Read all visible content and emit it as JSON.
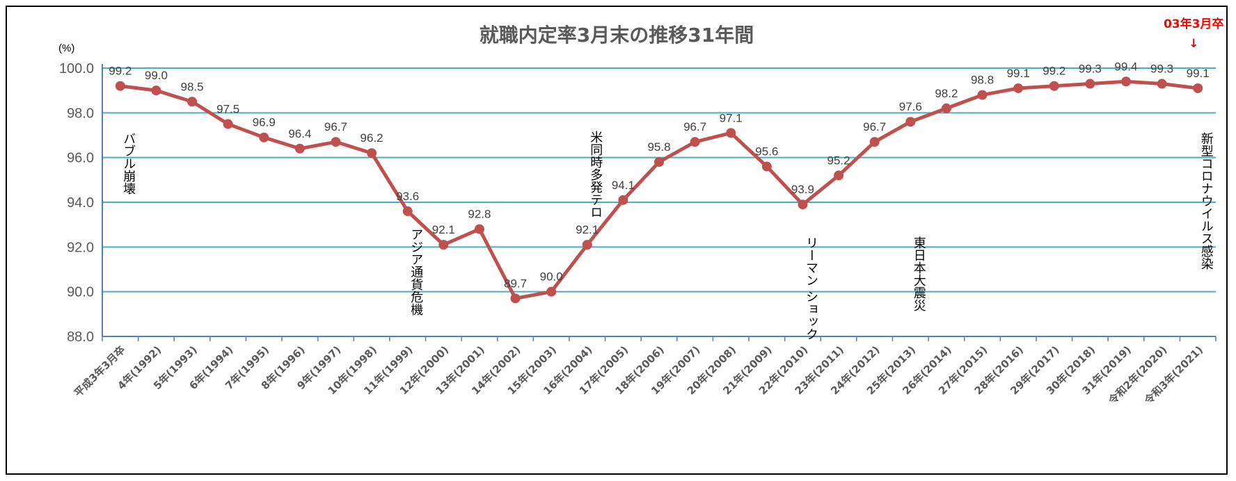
{
  "chart_data": {
    "type": "line",
    "title": "就職内定率3月末の推移31年間",
    "ylabel": "(%)",
    "xlabel": "",
    "ylim": [
      88.0,
      100.0
    ],
    "yticks": [
      "88.0",
      "90.0",
      "92.0",
      "94.0",
      "96.0",
      "98.0",
      "100.0"
    ],
    "grid": true,
    "categories": [
      "平成3年3月卒",
      "4年(1992)",
      "5年(1993)",
      "6年(1994)",
      "7年(1995)",
      "8年(1996)",
      "9年(1997)",
      "10年(1998)",
      "11年(1999)",
      "12年(2000)",
      "13年(2001)",
      "14年(2002)",
      "15年(2003)",
      "16年(2004)",
      "17年(2005)",
      "18年(2006)",
      "19年(2007)",
      "20年(2008)",
      "21年(2009)",
      "22年(2010)",
      "23年(2011)",
      "24年(2012)",
      "25年(2013)",
      "26年(2014)",
      "27年(2015)",
      "28年(2016)",
      "29年(2017)",
      "30年(2018)",
      "31年(2019)",
      "令和2年(2020)",
      "令和3年(2021)"
    ],
    "series": [
      {
        "values": [
          99.2,
          99.0,
          98.5,
          97.5,
          96.9,
          96.4,
          96.7,
          96.2,
          93.6,
          92.1,
          92.8,
          89.7,
          90.0,
          92.1,
          94.1,
          95.8,
          96.7,
          97.1,
          95.6,
          93.9,
          95.2,
          96.7,
          97.6,
          98.2,
          98.8,
          99.1,
          99.2,
          99.3,
          99.4,
          99.3,
          99.1
        ],
        "labels": [
          "99.2",
          "99.0",
          "98.5",
          "97.5",
          "96.9",
          "96.4",
          "96.7",
          "96.2",
          "93.6",
          "92.1",
          "92.8",
          "89.7",
          "90.0",
          "92.1",
          "94.1",
          "95.8",
          "96.7",
          "97.1",
          "95.6",
          "93.9",
          "95.2",
          "96.7",
          "97.6",
          "98.2",
          "98.8",
          "99.1",
          "99.2",
          "99.3",
          "99.4",
          "99.3",
          "99.1"
        ]
      }
    ],
    "annotations": [
      {
        "text": "バブル崩壊",
        "category_index": 0
      },
      {
        "text": "アジア通貨危機",
        "category_index": 8
      },
      {
        "text": "米同時多発テロ",
        "category_index": 13
      },
      {
        "text": "リーマン ショック",
        "category_index": 19
      },
      {
        "text": "東日本大震災",
        "category_index": 22
      },
      {
        "text": "新型コロナウイルス感染",
        "category_index": 30
      }
    ],
    "highlight": {
      "text": "03年3月卒",
      "arrow": "↓",
      "category_index": 30
    },
    "colors": {
      "line": "#C0504D",
      "grid": "#4BACC6",
      "axis": "#4F81BD",
      "highlight": "#FF0000"
    }
  }
}
